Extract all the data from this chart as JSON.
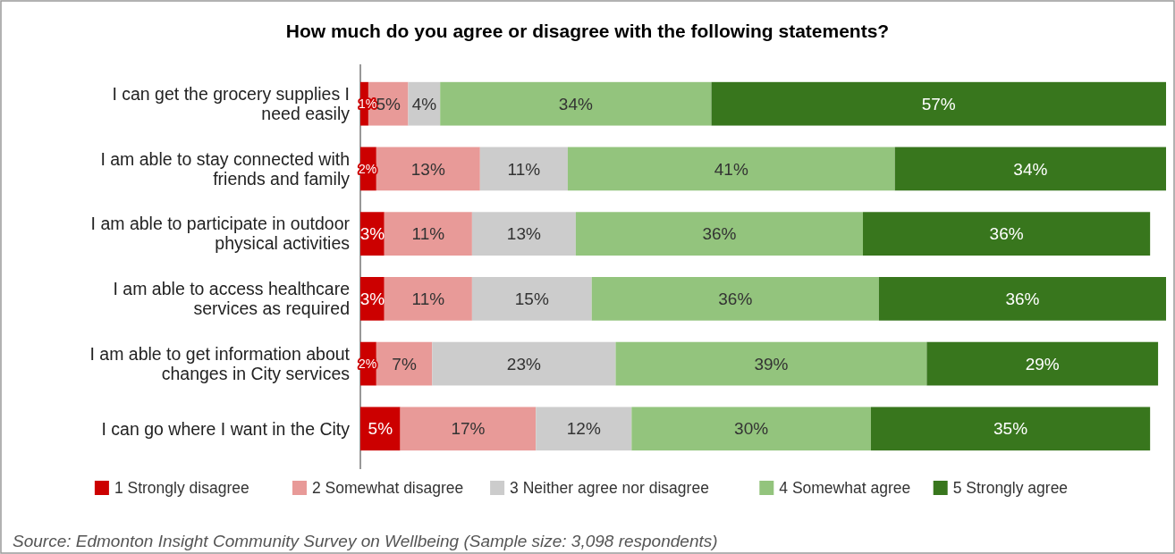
{
  "chart_data": {
    "type": "bar",
    "orientation": "horizontal",
    "stacked": true,
    "title": "How much do you agree or disagree with the following statements?",
    "categories": [
      "I can get the grocery supplies I need easily",
      "I am able to stay connected with friends and family",
      "I am able to participate in outdoor physical activities",
      "I am able to access healthcare services as required",
      "I am able to get information about changes in City services",
      "I can go where I want in the City"
    ],
    "xlim": [
      0,
      101
    ],
    "tick_labels": "y",
    "legend": "bottom",
    "series": [
      {
        "name": "1 Strongly disagree",
        "color": "#cc0000",
        "values": [
          1,
          2,
          3,
          3,
          2,
          5
        ],
        "value_labels": [
          "1%",
          "2%",
          "3%",
          "3%",
          "2%",
          "5%"
        ]
      },
      {
        "name": "2 Somewhat disagree",
        "color": "#e89a98",
        "values": [
          5,
          13,
          11,
          11,
          7,
          17
        ],
        "value_labels": [
          "5%",
          "13%",
          "11%",
          "11%",
          "7%",
          "17%"
        ]
      },
      {
        "name": "3 Neither agree nor disagree",
        "color": "#cccccc",
        "values": [
          4,
          11,
          13,
          15,
          23,
          12
        ],
        "value_labels": [
          "4%",
          "11%",
          "13%",
          "15%",
          "23%",
          "12%"
        ]
      },
      {
        "name": "4 Somewhat agree",
        "color": "#93c47d",
        "values": [
          34,
          41,
          36,
          36,
          39,
          30
        ],
        "value_labels": [
          "34%",
          "41%",
          "36%",
          "36%",
          "39%",
          "30%"
        ]
      },
      {
        "name": "5 Strongly agree",
        "color": "#38761d",
        "values": [
          57,
          34,
          36,
          36,
          29,
          35
        ],
        "value_labels": [
          "57%",
          "34%",
          "36%",
          "36%",
          "29%",
          "35%"
        ]
      }
    ],
    "annotations": [
      "Source: Edmonton Insight Community Survey on Wellbeing (Sample size: 3,098 respondents)"
    ]
  }
}
